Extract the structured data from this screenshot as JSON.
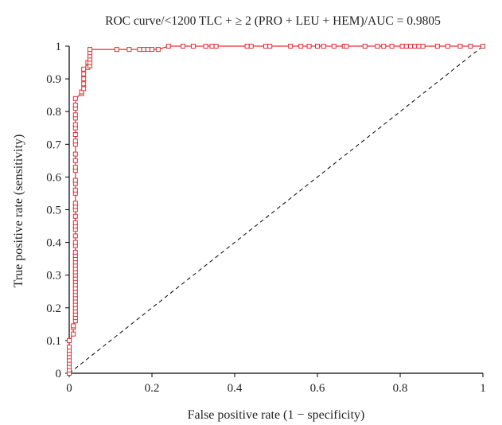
{
  "chart_data": {
    "type": "line",
    "title": "ROC curve/<1200 TLC + ≥ 2 (PRO + LEU + HEM)/AUC = 0.9805",
    "xlabel": "False positive rate (1 − specificity)",
    "ylabel": "True positive rate (sensitivity)",
    "xlim": [
      0,
      1
    ],
    "ylim": [
      0,
      1
    ],
    "x_ticks": [
      "0",
      "0.2",
      "0.4",
      "0.6",
      "0.8",
      "1"
    ],
    "y_ticks": [
      "0",
      "0.1",
      "0.2",
      "0.3",
      "0.4",
      "0.5",
      "0.6",
      "0.7",
      "0.8",
      "0.9",
      "1"
    ],
    "grid": false,
    "legend": "none",
    "colors": {
      "roc": "#e03030",
      "reference": "#000000",
      "axis": "#000000"
    },
    "series": [
      {
        "x": [
          0,
          0,
          0,
          0,
          0,
          0,
          0,
          0,
          0,
          0,
          0.01,
          0.01,
          0.01,
          0.015,
          0.015,
          0.015,
          0.015,
          0.015,
          0.015,
          0.015,
          0.015,
          0.015,
          0.015,
          0.015,
          0.015,
          0.015,
          0.015,
          0.015,
          0.015,
          0.015,
          0.015,
          0.015,
          0.015,
          0.015,
          0.015,
          0.015,
          0.015,
          0.015,
          0.015,
          0.015,
          0.015,
          0.015,
          0.015,
          0.015,
          0.015,
          0.015,
          0.015,
          0.015,
          0.015,
          0.015,
          0.015,
          0.015,
          0.015,
          0.015,
          0.015,
          0.015,
          0.015,
          0.015,
          0.015,
          0.015,
          0.015,
          0.015,
          0.015,
          0.03,
          0.03,
          0.035,
          0.035,
          0.035,
          0.035,
          0.035,
          0.045,
          0.045,
          0.05,
          0.05,
          0.05,
          0.05,
          0.05,
          0.05,
          0.115,
          0.145,
          0.17,
          0.18,
          0.19,
          0.2,
          0.215,
          0.24,
          0.275,
          0.3,
          0.33,
          0.345,
          0.355,
          0.43,
          0.44,
          0.475,
          0.485,
          0.535,
          0.56,
          0.58,
          0.6,
          0.615,
          0.64,
          0.665,
          0.67,
          0.715,
          0.745,
          0.76,
          0.78,
          0.805,
          0.815,
          0.825,
          0.835,
          0.845,
          0.855,
          0.89,
          0.915,
          0.945,
          0.97,
          1
        ],
        "y": [
          0,
          0.01,
          0.02,
          0.03,
          0.04,
          0.05,
          0.06,
          0.07,
          0.08,
          0.1,
          0.12,
          0.14,
          0.145,
          0.16,
          0.17,
          0.18,
          0.19,
          0.2,
          0.21,
          0.22,
          0.23,
          0.24,
          0.25,
          0.26,
          0.27,
          0.28,
          0.29,
          0.3,
          0.31,
          0.32,
          0.33,
          0.34,
          0.35,
          0.36,
          0.37,
          0.39,
          0.4,
          0.42,
          0.44,
          0.45,
          0.46,
          0.48,
          0.5,
          0.51,
          0.52,
          0.55,
          0.56,
          0.58,
          0.59,
          0.62,
          0.63,
          0.65,
          0.67,
          0.7,
          0.71,
          0.73,
          0.75,
          0.76,
          0.78,
          0.79,
          0.81,
          0.82,
          0.84,
          0.855,
          0.86,
          0.87,
          0.885,
          0.9,
          0.915,
          0.93,
          0.935,
          0.95,
          0.94,
          0.95,
          0.96,
          0.97,
          0.98,
          0.99,
          0.99,
          0.99,
          0.99,
          0.99,
          0.99,
          0.99,
          0.99,
          1,
          1,
          1,
          1,
          1,
          1,
          1,
          1,
          1,
          1,
          1,
          1,
          1,
          1,
          1,
          1,
          1,
          1,
          1,
          1,
          1,
          1,
          1,
          1,
          1,
          1,
          1,
          1,
          1,
          1,
          1,
          1,
          1
        ]
      }
    ],
    "reference_line": {
      "x": [
        0,
        1
      ],
      "y": [
        0,
        1
      ]
    }
  }
}
